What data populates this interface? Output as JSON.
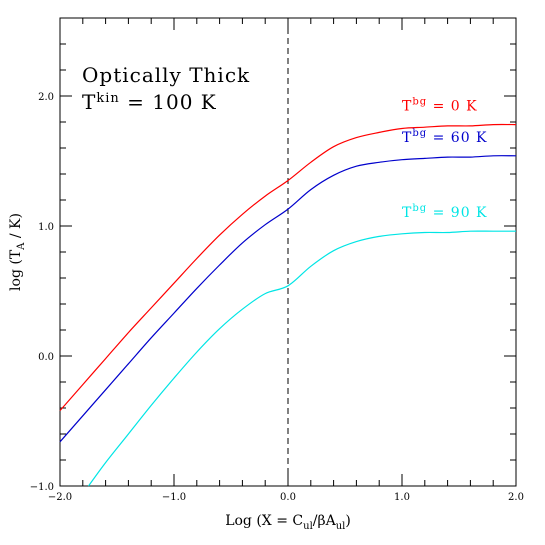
{
  "chart_data": {
    "type": "line",
    "title_lines": [
      "Optically Thick",
      "T",
      "kin",
      " =  100 K"
    ],
    "xlabel_parts": [
      "Log (X = C",
      "ul",
      "/βA",
      "ul",
      ")"
    ],
    "ylabel_parts": [
      "log (T",
      "A",
      " / K)"
    ],
    "xlim": [
      -2.0,
      2.0
    ],
    "ylim": [
      -1.0,
      2.6
    ],
    "x_major_ticks": [
      -2.0,
      -1.0,
      0.0,
      1.0,
      2.0
    ],
    "x_tick_labels": [
      "−2.0",
      "−1.0",
      "0.0",
      "1.0",
      "2.0"
    ],
    "y_major_ticks": [
      -1.0,
      0.0,
      1.0,
      2.0
    ],
    "y_tick_labels": [
      "−1.0",
      "0.0",
      "1.0",
      "2.0"
    ],
    "x_minor_step": 0.2,
    "y_minor_step": 0.2,
    "reference_line_x": 0.0,
    "series": [
      {
        "label_main": "T",
        "label_sup": "bg",
        "label_rest": " =   0 K",
        "color": "#ff0000",
        "x": [
          -2.0,
          -1.8,
          -1.6,
          -1.4,
          -1.2,
          -1.0,
          -0.8,
          -0.6,
          -0.4,
          -0.2,
          0.0,
          0.2,
          0.4,
          0.6,
          0.8,
          1.0,
          1.2,
          1.4,
          1.6,
          1.8,
          2.0
        ],
        "y": [
          -0.42,
          -0.22,
          -0.02,
          0.18,
          0.37,
          0.56,
          0.75,
          0.93,
          1.09,
          1.23,
          1.35,
          1.49,
          1.61,
          1.68,
          1.72,
          1.75,
          1.76,
          1.77,
          1.77,
          1.78,
          1.78
        ]
      },
      {
        "label_main": "T",
        "label_sup": "bg",
        "label_rest": " =  60 K",
        "color": "#0000cc",
        "x": [
          -2.0,
          -1.8,
          -1.6,
          -1.4,
          -1.2,
          -1.0,
          -0.8,
          -0.6,
          -0.4,
          -0.2,
          0.0,
          0.2,
          0.4,
          0.6,
          0.8,
          1.0,
          1.2,
          1.4,
          1.6,
          1.8,
          2.0
        ],
        "y": [
          -0.66,
          -0.46,
          -0.26,
          -0.06,
          0.14,
          0.33,
          0.52,
          0.7,
          0.87,
          1.01,
          1.13,
          1.28,
          1.39,
          1.46,
          1.49,
          1.51,
          1.52,
          1.53,
          1.53,
          1.54,
          1.54
        ]
      },
      {
        "label_main": "T",
        "label_sup": "bg",
        "label_rest": " =  90 K",
        "color": "#00e5e5",
        "x": [
          -1.75,
          -1.6,
          -1.4,
          -1.2,
          -1.0,
          -0.8,
          -0.6,
          -0.4,
          -0.2,
          0.0,
          0.2,
          0.4,
          0.6,
          0.8,
          1.0,
          1.2,
          1.4,
          1.6,
          1.8,
          2.0
        ],
        "y": [
          -1.0,
          -0.82,
          -0.6,
          -0.38,
          -0.17,
          0.03,
          0.21,
          0.36,
          0.48,
          0.54,
          0.69,
          0.81,
          0.88,
          0.92,
          0.94,
          0.95,
          0.95,
          0.96,
          0.96,
          0.96
        ]
      }
    ]
  }
}
